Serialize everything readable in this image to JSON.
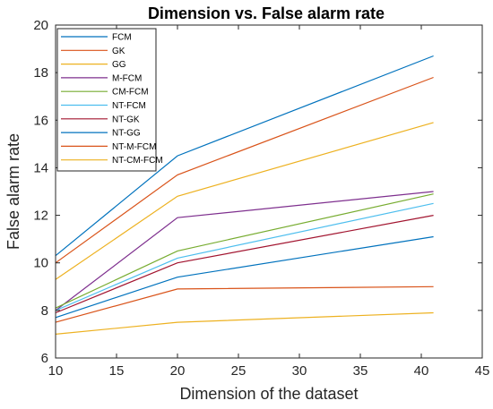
{
  "chart_data": {
    "type": "line",
    "title": "Dimension vs. False alarm rate",
    "xlabel": "Dimension of the dataset",
    "ylabel": "False alarm rate",
    "xlim": [
      10,
      45
    ],
    "ylim": [
      6,
      20
    ],
    "xticks": [
      10,
      15,
      20,
      25,
      30,
      35,
      40,
      45
    ],
    "yticks": [
      6,
      8,
      10,
      12,
      14,
      16,
      18,
      20
    ],
    "grid": false,
    "legend_position": "top-left",
    "x": [
      10,
      20,
      41
    ],
    "series": [
      {
        "name": "FCM",
        "values": [
          10.3,
          14.5,
          18.7
        ],
        "color": "#0072BD"
      },
      {
        "name": "GK",
        "values": [
          10.0,
          13.7,
          17.8
        ],
        "color": "#D95319"
      },
      {
        "name": "GG",
        "values": [
          9.3,
          12.8,
          15.9
        ],
        "color": "#EDB120"
      },
      {
        "name": "M-FCM",
        "values": [
          8.0,
          11.9,
          13.0
        ],
        "color": "#7E2F8E"
      },
      {
        "name": "CM-FCM",
        "values": [
          8.1,
          10.5,
          12.9
        ],
        "color": "#77AC30"
      },
      {
        "name": "NT-FCM",
        "values": [
          8.0,
          10.2,
          12.5
        ],
        "color": "#4DBEEE"
      },
      {
        "name": "NT-GK",
        "values": [
          7.9,
          10.0,
          12.0
        ],
        "color": "#A2142F"
      },
      {
        "name": "NT-GG",
        "values": [
          7.7,
          9.4,
          11.1
        ],
        "color": "#0072BD"
      },
      {
        "name": "NT-M-FCM",
        "values": [
          7.5,
          8.9,
          9.0
        ],
        "color": "#D95319"
      },
      {
        "name": "NT-CM-FCM",
        "values": [
          7.0,
          7.5,
          7.9
        ],
        "color": "#EDB120"
      }
    ]
  }
}
